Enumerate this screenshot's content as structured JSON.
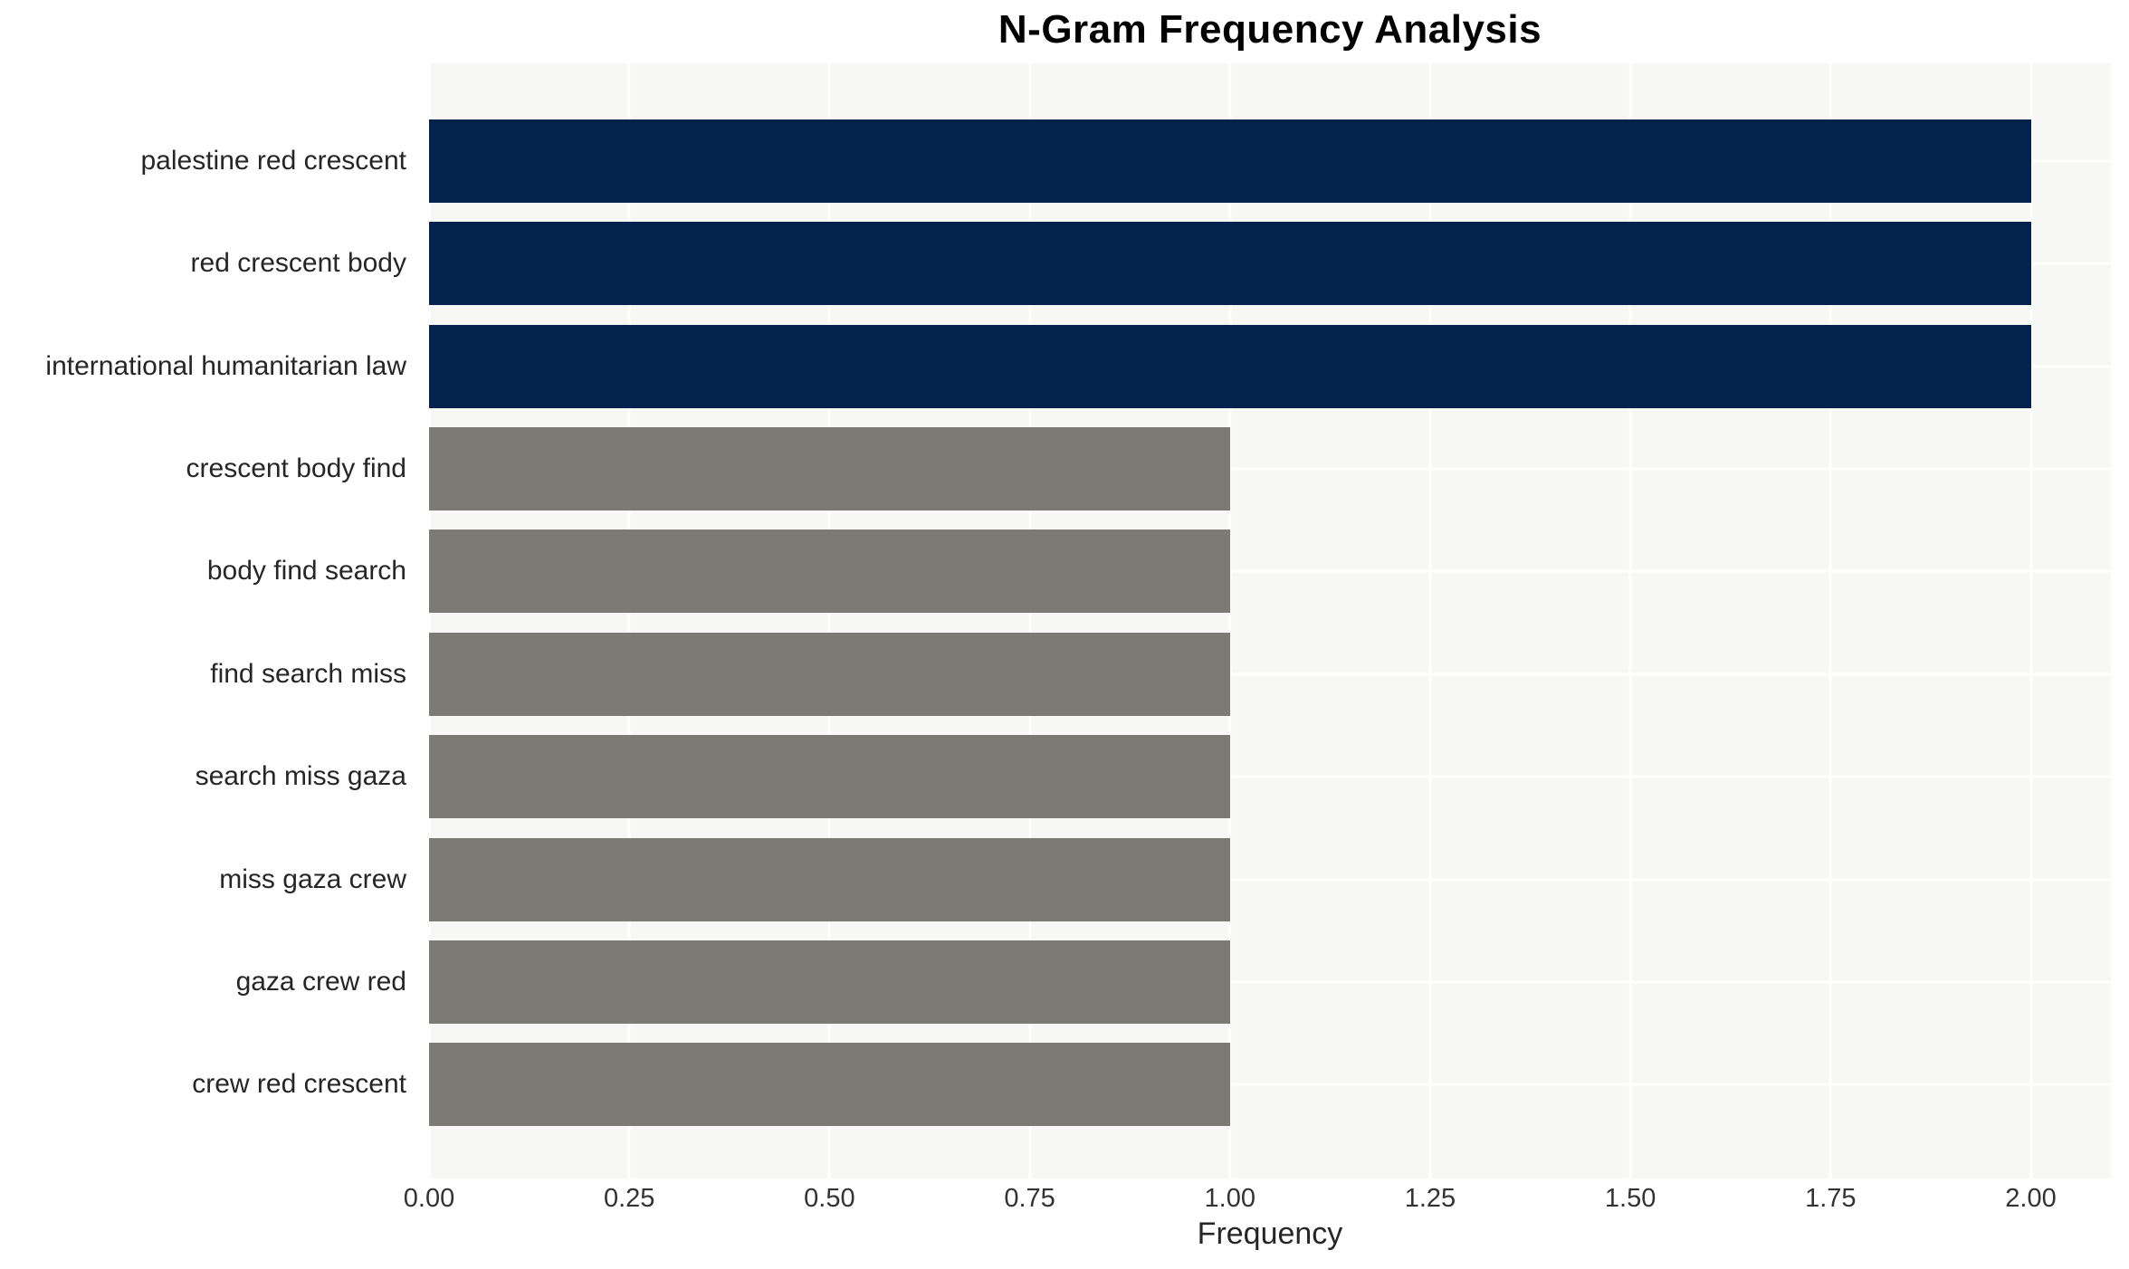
{
  "chart_data": {
    "type": "bar",
    "orientation": "horizontal",
    "title": "N-Gram Frequency Analysis",
    "xlabel": "Frequency",
    "ylabel": "",
    "categories": [
      "palestine red crescent",
      "red crescent body",
      "international humanitarian law",
      "crescent body find",
      "body find search",
      "find search miss",
      "search miss gaza",
      "miss gaza crew",
      "gaza crew red",
      "crew red crescent"
    ],
    "values": [
      2,
      2,
      2,
      1,
      1,
      1,
      1,
      1,
      1,
      1
    ],
    "bar_colors": [
      "#03234D",
      "#03234D",
      "#03234D",
      "#7B7A74",
      "#7B7A74",
      "#7B7A74",
      "#7B7A74",
      "#7B7A74",
      "#7B7A74",
      "#7B7A74"
    ],
    "xlim": [
      0,
      2.1
    ],
    "xticks": [
      0,
      0.25,
      0.5,
      0.75,
      1.0,
      1.25,
      1.5,
      1.75,
      2.0
    ],
    "xtick_labels": [
      "0.00",
      "0.25",
      "0.50",
      "0.75",
      "1.00",
      "1.25",
      "1.50",
      "1.75",
      "2.00"
    ],
    "grid": true,
    "legend": false,
    "colors": {
      "plot_background": "#F7F7F6",
      "grid_line": "#FFFFFF",
      "title_text": "#000000",
      "label_text": "#262626",
      "tick_text": "#333333"
    }
  }
}
